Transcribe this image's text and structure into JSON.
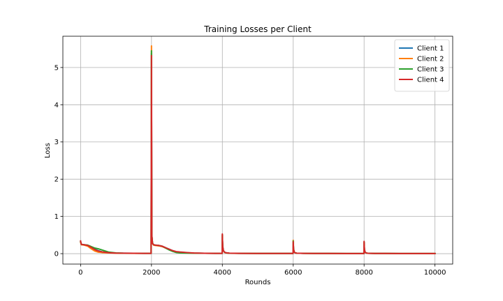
{
  "chart_data": {
    "type": "line",
    "title": "Training Losses per Client",
    "xlabel": "Rounds",
    "ylabel": "Loss",
    "xlim": [
      -500,
      10500
    ],
    "ylim": [
      -0.28,
      5.84
    ],
    "xticks": [
      0,
      2000,
      4000,
      6000,
      8000,
      10000
    ],
    "yticks": [
      0,
      1,
      2,
      3,
      4,
      5
    ],
    "xtick_labels": [
      "0",
      "2000",
      "4000",
      "6000",
      "8000",
      "10000"
    ],
    "ytick_labels": [
      "0",
      "1",
      "2",
      "3",
      "4",
      "5"
    ],
    "grid": true,
    "legend_position": "top-right",
    "series": [
      {
        "name": "Client 1",
        "color": "#1f77b4",
        "x": [
          0,
          20,
          100,
          200,
          300,
          400,
          500,
          600,
          700,
          800,
          1000,
          1200,
          1500,
          1800,
          1990,
          2000,
          2010,
          2030,
          2060,
          2100,
          2200,
          2300,
          2400,
          2500,
          2600,
          2700,
          2800,
          3000,
          3200,
          3500,
          3800,
          3995,
          4000,
          4010,
          4030,
          4060,
          4100,
          4200,
          4500,
          5000,
          5500,
          5995,
          6000,
          6010,
          6030,
          6060,
          6100,
          6300,
          6600,
          7000,
          7500,
          7995,
          8000,
          8010,
          8030,
          8060,
          8100,
          8300,
          8600,
          9000,
          9500,
          10000
        ],
        "y": [
          0.32,
          0.25,
          0.24,
          0.22,
          0.17,
          0.12,
          0.08,
          0.05,
          0.035,
          0.025,
          0.015,
          0.012,
          0.01,
          0.008,
          0.008,
          5.38,
          0.5,
          0.28,
          0.24,
          0.23,
          0.22,
          0.2,
          0.16,
          0.12,
          0.08,
          0.05,
          0.04,
          0.025,
          0.015,
          0.01,
          0.008,
          0.008,
          0.5,
          0.2,
          0.08,
          0.04,
          0.025,
          0.012,
          0.008,
          0.006,
          0.005,
          0.005,
          0.33,
          0.12,
          0.04,
          0.02,
          0.012,
          0.007,
          0.005,
          0.005,
          0.004,
          0.004,
          0.31,
          0.1,
          0.035,
          0.018,
          0.01,
          0.006,
          0.005,
          0.004,
          0.004,
          0.004
        ]
      },
      {
        "name": "Client 2",
        "color": "#ff7f0e",
        "x": [
          0,
          20,
          100,
          200,
          300,
          400,
          500,
          600,
          700,
          800,
          1000,
          1200,
          1500,
          1800,
          1990,
          2000,
          2010,
          2030,
          2060,
          2100,
          2200,
          2300,
          2400,
          2500,
          2600,
          2700,
          2800,
          3000,
          3200,
          3500,
          3800,
          3995,
          4000,
          4010,
          4030,
          4060,
          4100,
          4200,
          4500,
          5000,
          5500,
          5995,
          6000,
          6010,
          6030,
          6060,
          6100,
          6300,
          6600,
          7000,
          7500,
          7995,
          8000,
          8010,
          8030,
          8060,
          8100,
          8300,
          8600,
          9000,
          9500,
          10000
        ],
        "y": [
          0.3,
          0.24,
          0.23,
          0.2,
          0.13,
          0.07,
          0.04,
          0.03,
          0.025,
          0.02,
          0.013,
          0.01,
          0.008,
          0.007,
          0.007,
          5.58,
          0.48,
          0.27,
          0.23,
          0.22,
          0.21,
          0.19,
          0.15,
          0.11,
          0.07,
          0.045,
          0.035,
          0.02,
          0.013,
          0.009,
          0.007,
          0.007,
          0.48,
          0.18,
          0.07,
          0.035,
          0.02,
          0.01,
          0.007,
          0.005,
          0.005,
          0.005,
          0.36,
          0.13,
          0.045,
          0.02,
          0.012,
          0.007,
          0.005,
          0.005,
          0.004,
          0.004,
          0.3,
          0.1,
          0.035,
          0.018,
          0.01,
          0.006,
          0.005,
          0.004,
          0.004,
          0.004
        ]
      },
      {
        "name": "Client 3",
        "color": "#2ca02c",
        "x": [
          0,
          20,
          100,
          200,
          300,
          400,
          500,
          600,
          700,
          800,
          1000,
          1200,
          1500,
          1800,
          1990,
          2000,
          2010,
          2030,
          2060,
          2100,
          2200,
          2300,
          2400,
          2500,
          2600,
          2700,
          2800,
          3000,
          3200,
          3500,
          3800,
          3995,
          4000,
          4010,
          4030,
          4060,
          4100,
          4200,
          4500,
          5000,
          5500,
          5995,
          6000,
          6010,
          6030,
          6060,
          6100,
          6300,
          6600,
          7000,
          7500,
          7995,
          8000,
          8010,
          8030,
          8060,
          8100,
          8300,
          8600,
          9000,
          9500,
          10000
        ],
        "y": [
          0.33,
          0.25,
          0.24,
          0.23,
          0.19,
          0.15,
          0.13,
          0.1,
          0.07,
          0.04,
          0.02,
          0.013,
          0.01,
          0.008,
          0.008,
          5.45,
          0.5,
          0.28,
          0.24,
          0.23,
          0.22,
          0.2,
          0.15,
          0.1,
          0.06,
          0.03,
          0.02,
          0.015,
          0.012,
          0.009,
          0.008,
          0.008,
          0.51,
          0.19,
          0.075,
          0.04,
          0.022,
          0.011,
          0.008,
          0.006,
          0.005,
          0.005,
          0.34,
          0.12,
          0.04,
          0.02,
          0.012,
          0.007,
          0.005,
          0.005,
          0.004,
          0.004,
          0.32,
          0.11,
          0.035,
          0.018,
          0.01,
          0.006,
          0.005,
          0.004,
          0.004,
          0.004
        ]
      },
      {
        "name": "Client 4",
        "color": "#d62728",
        "x": [
          0,
          20,
          100,
          200,
          300,
          400,
          500,
          600,
          700,
          800,
          1000,
          1200,
          1500,
          1800,
          1990,
          2000,
          2010,
          2030,
          2060,
          2100,
          2200,
          2300,
          2400,
          2500,
          2600,
          2700,
          2800,
          3000,
          3200,
          3500,
          3800,
          3995,
          4000,
          4010,
          4030,
          4060,
          4100,
          4200,
          4500,
          5000,
          5500,
          5995,
          6000,
          6010,
          6030,
          6060,
          6100,
          6300,
          6600,
          7000,
          7500,
          7995,
          8000,
          8010,
          8030,
          8060,
          8100,
          8300,
          8600,
          9000,
          9500,
          10000
        ],
        "y": [
          0.34,
          0.25,
          0.24,
          0.22,
          0.17,
          0.11,
          0.07,
          0.05,
          0.035,
          0.025,
          0.015,
          0.012,
          0.01,
          0.008,
          0.008,
          5.32,
          0.49,
          0.27,
          0.24,
          0.23,
          0.22,
          0.2,
          0.16,
          0.12,
          0.08,
          0.055,
          0.045,
          0.03,
          0.018,
          0.011,
          0.008,
          0.008,
          0.53,
          0.2,
          0.08,
          0.04,
          0.024,
          0.012,
          0.008,
          0.006,
          0.005,
          0.005,
          0.32,
          0.11,
          0.04,
          0.02,
          0.012,
          0.007,
          0.005,
          0.005,
          0.004,
          0.004,
          0.33,
          0.11,
          0.038,
          0.018,
          0.01,
          0.006,
          0.005,
          0.004,
          0.004,
          0.004
        ]
      }
    ]
  }
}
